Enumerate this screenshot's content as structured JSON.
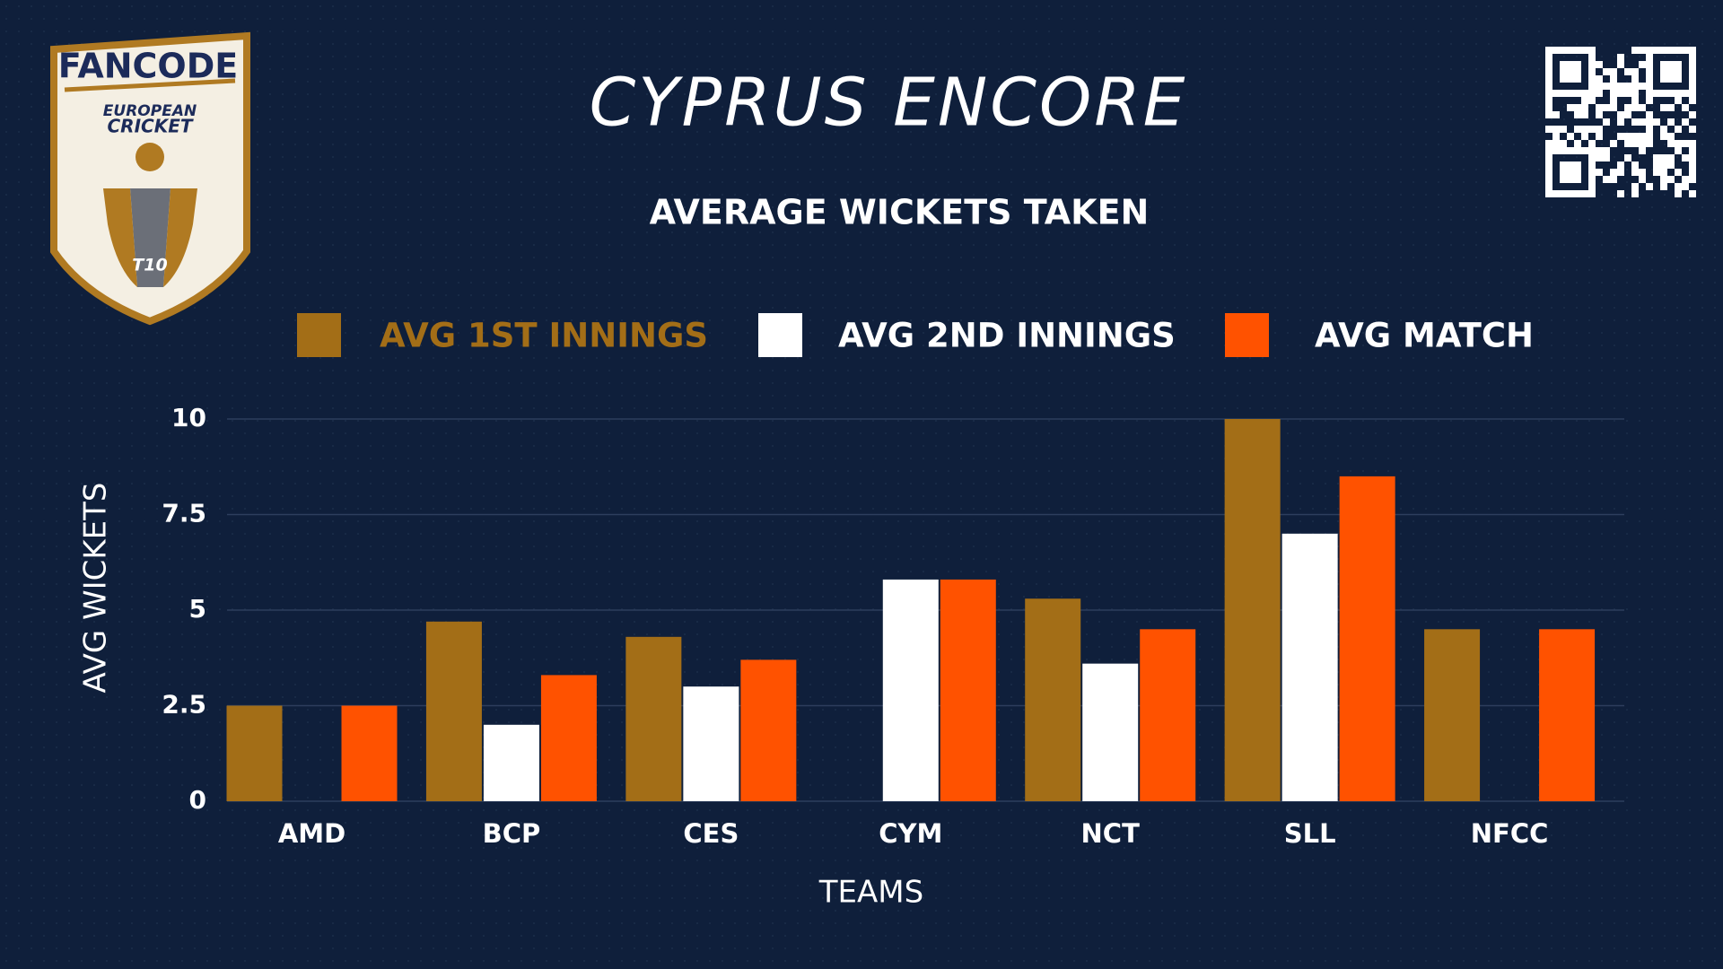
{
  "logo": {
    "brand": "FANCODE",
    "line1": "EUROPEAN",
    "line2": "CRICKET",
    "badge": "T10"
  },
  "chart_data": {
    "type": "bar",
    "title": "CYPRUS ENCORE",
    "subtitle": "AVERAGE WICKETS TAKEN",
    "x_label": "TEAMS",
    "y_label": "AVG WICKETS",
    "categories": [
      "AMD",
      "BCP",
      "CES",
      "CYM",
      "NCT",
      "SLL",
      "NFCC"
    ],
    "series": [
      {
        "name": "AVG 1ST INNINGS",
        "color": "#a36e17",
        "values": [
          2.5,
          4.7,
          4.3,
          0,
          5.3,
          10,
          4.5
        ]
      },
      {
        "name": "AVG 2ND INNINGS",
        "color": "#ffffff",
        "values": [
          0,
          2,
          3,
          5.8,
          3.6,
          7,
          0
        ]
      },
      {
        "name": "AVG MATCH",
        "color": "#ff5200",
        "values": [
          2.5,
          3.3,
          3.7,
          5.8,
          4.5,
          8.5,
          4.5
        ]
      }
    ],
    "ylim": [
      0,
      10
    ],
    "yticks": [
      0,
      2.5,
      5,
      7.5,
      10
    ],
    "grid": true,
    "legend": "top"
  }
}
